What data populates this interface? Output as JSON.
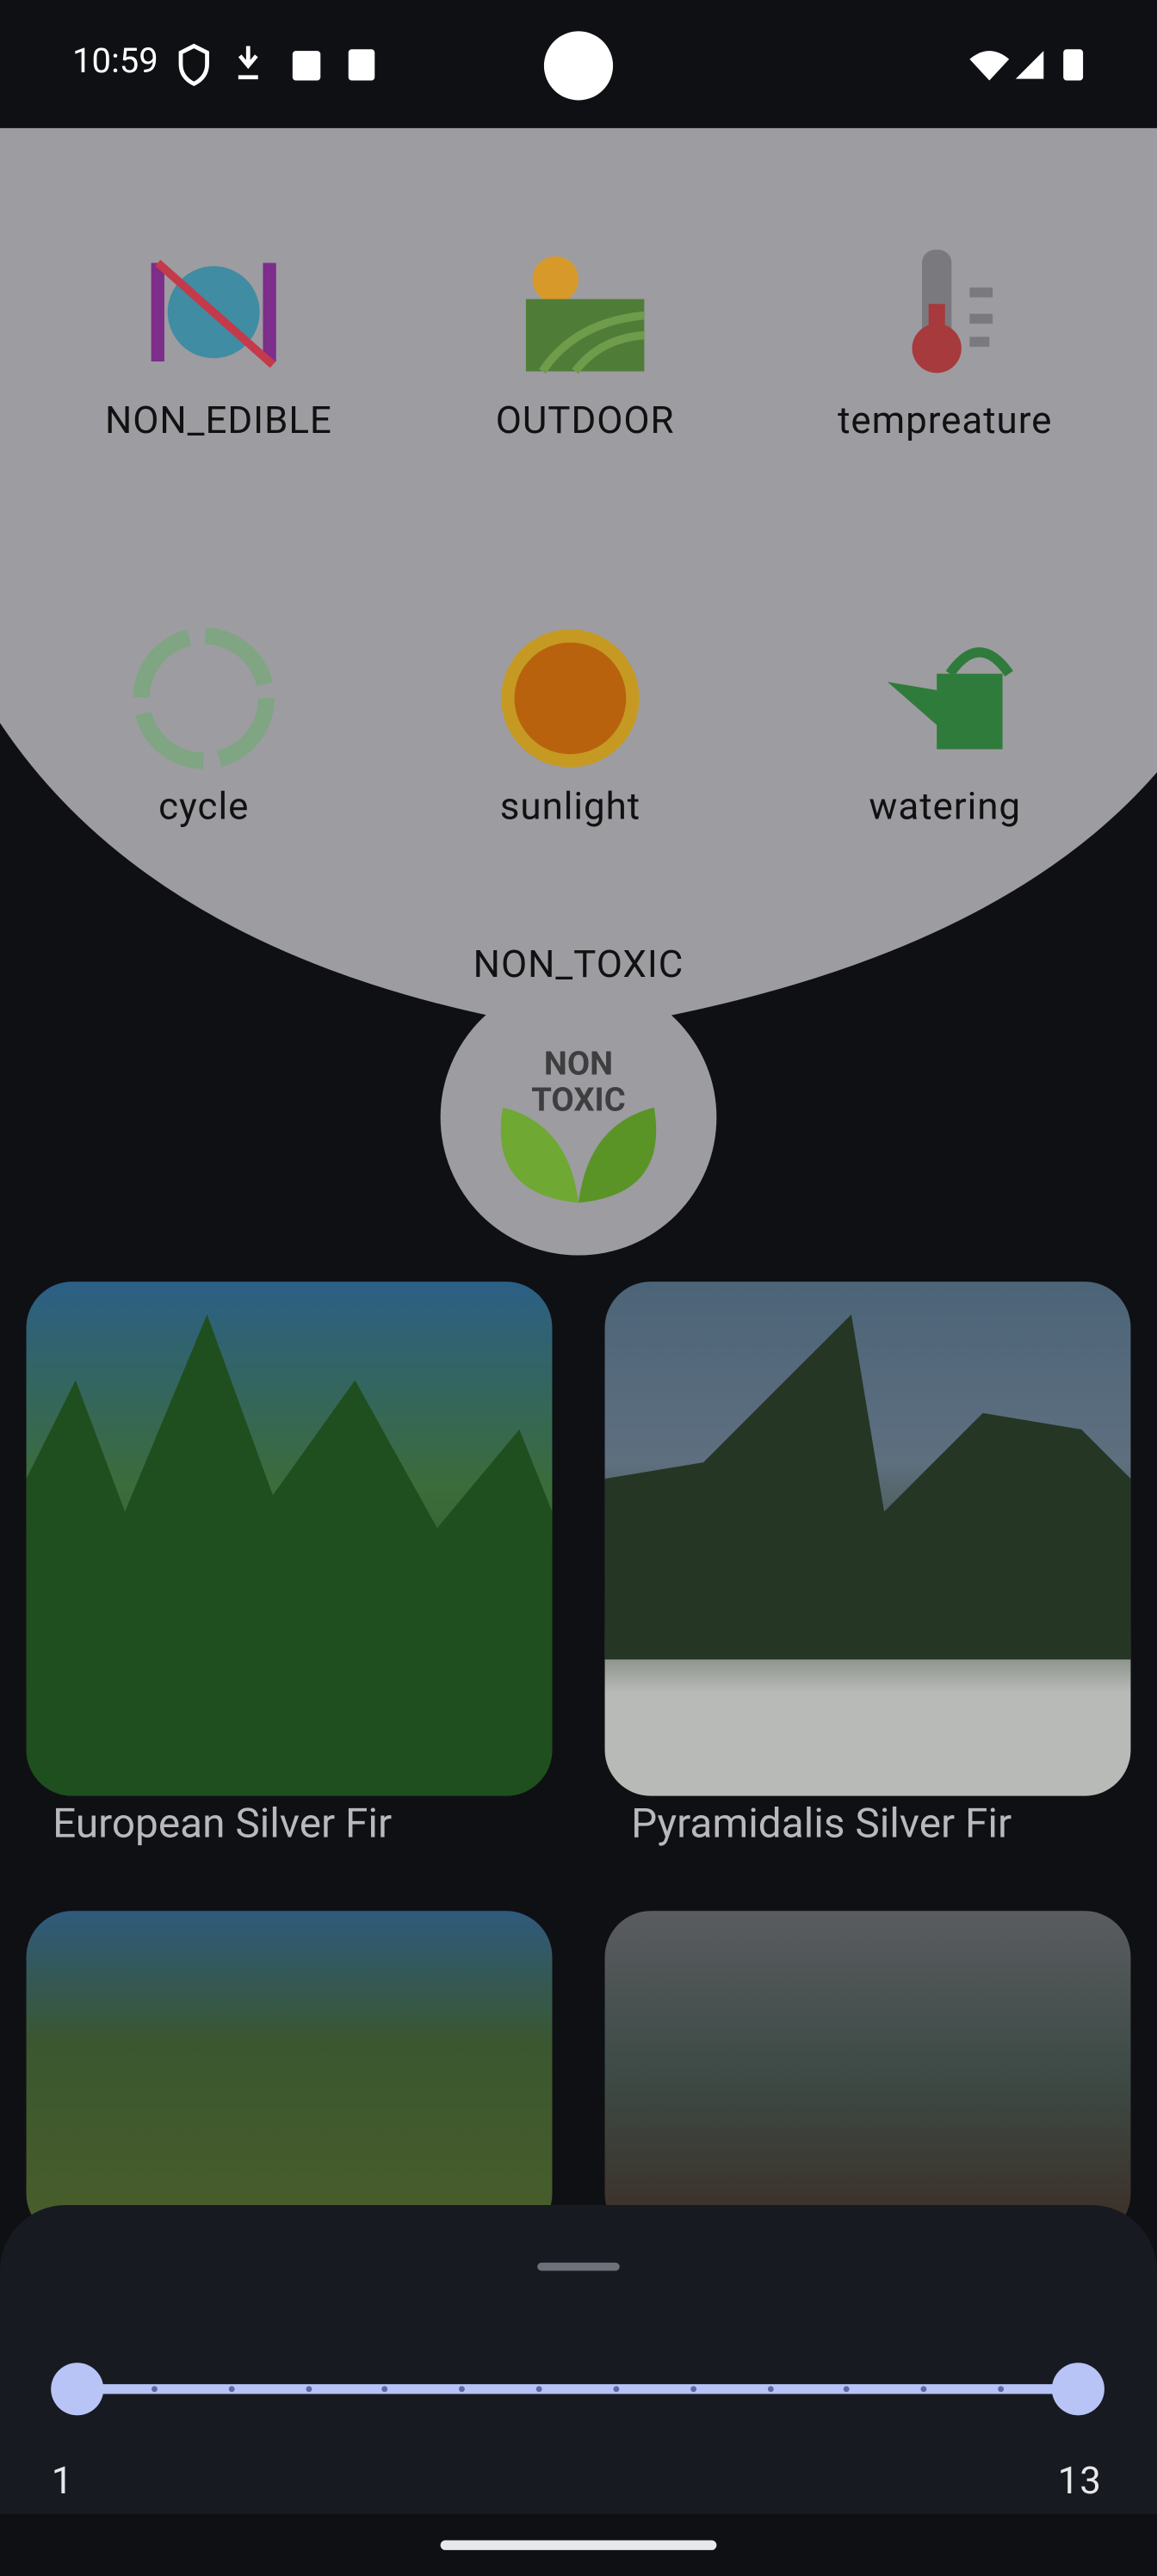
{
  "status_bar": {
    "time": "10:59"
  },
  "filters": [
    {
      "label": "NON_EDIBLE"
    },
    {
      "label": "OUTDOOR"
    },
    {
      "label": "tempreature"
    },
    {
      "label": "cycle"
    },
    {
      "label": "sunlight"
    },
    {
      "label": "watering"
    }
  ],
  "selected_filter": {
    "label": "NON_TOXIC"
  },
  "plants": [
    {
      "name": "European Silver Fir"
    },
    {
      "name": "Pyramidalis Silver Fir"
    }
  ],
  "slider": {
    "min_label": "1",
    "max_label": "13"
  }
}
